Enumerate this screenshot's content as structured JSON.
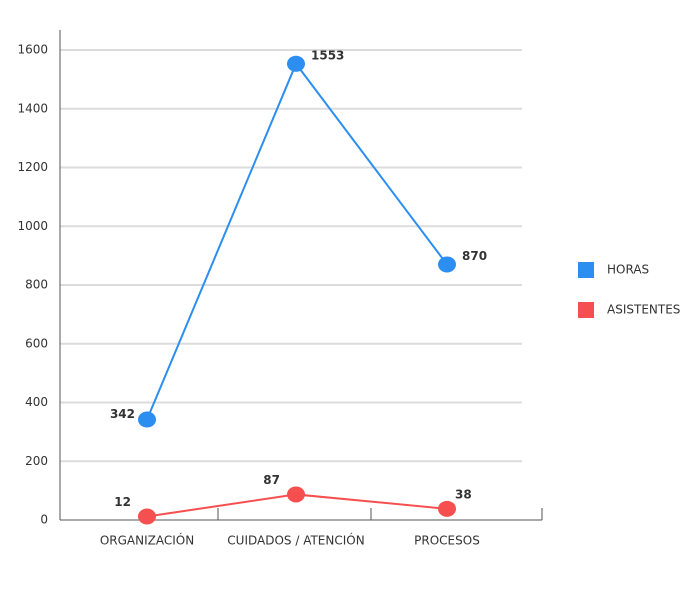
{
  "chart_data": {
    "type": "line",
    "categories": [
      "ORGANIZACIÓN",
      "CUIDADOS / ATENCIÓN",
      "PROCESOS"
    ],
    "series": [
      {
        "name": "HORAS",
        "color": "#2b8ef0",
        "values": [
          342,
          1553,
          870
        ]
      },
      {
        "name": "ASISTENTES",
        "color": "#f5504f",
        "values": [
          12,
          87,
          38
        ]
      }
    ],
    "ylim": [
      0,
      1600
    ],
    "yticks": [
      0,
      200,
      400,
      600,
      800,
      1000,
      1200,
      1400,
      1600
    ],
    "grid": true,
    "legend": "right"
  }
}
